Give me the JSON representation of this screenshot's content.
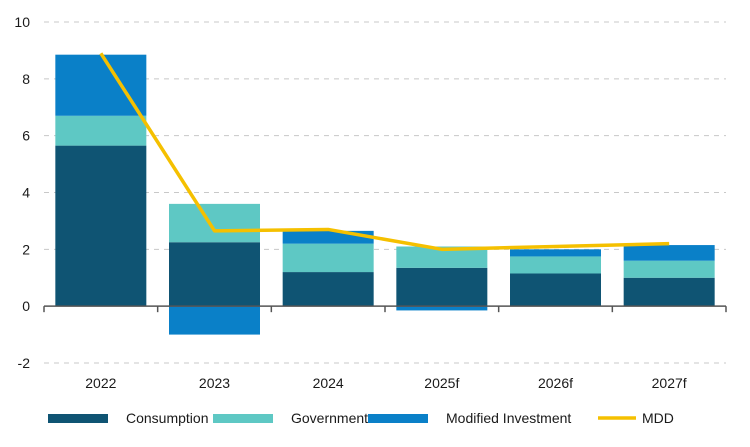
{
  "chart_data": {
    "type": "bar",
    "stacked": true,
    "title": "",
    "xlabel": "",
    "ylabel": "",
    "ylim": [
      -2,
      10
    ],
    "yticks": [
      -2,
      0,
      2,
      4,
      6,
      8,
      10
    ],
    "grid": "horizontal dashed",
    "categories": [
      "2022",
      "2023",
      "2024",
      "2025f",
      "2026f",
      "2027f"
    ],
    "series": [
      {
        "name": "Consumption",
        "kind": "bar",
        "color": "#0f5473",
        "values": [
          5.65,
          2.25,
          1.2,
          1.35,
          1.15,
          1.0
        ]
      },
      {
        "name": "Government",
        "kind": "bar",
        "color": "#5ec8c4",
        "values": [
          1.05,
          1.35,
          1.0,
          0.75,
          0.6,
          0.6
        ]
      },
      {
        "name": "Modified Investment",
        "kind": "bar",
        "color": "#0a80c8",
        "values": [
          2.15,
          -1.0,
          0.45,
          -0.15,
          0.25,
          0.55
        ]
      },
      {
        "name": "MDD",
        "kind": "line",
        "color": "#f5c000",
        "values": [
          8.9,
          2.65,
          2.7,
          2.0,
          2.1,
          2.2
        ]
      }
    ],
    "legend_position": "bottom"
  }
}
